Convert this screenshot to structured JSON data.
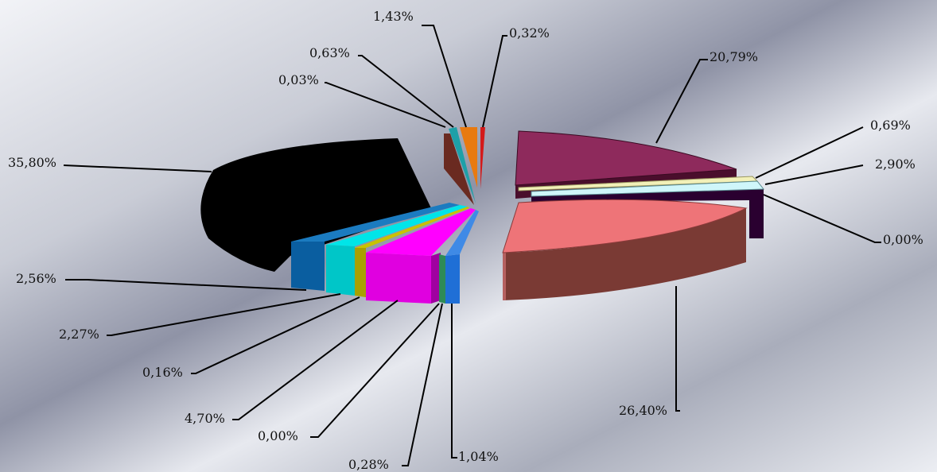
{
  "chart_data": {
    "type": "pie",
    "style": "exploded-3d",
    "slices": [
      {
        "label": "20,79%",
        "value": 20.79,
        "color": "#8E2A5C"
      },
      {
        "label": "0,69%",
        "value": 0.69,
        "color": "#F2F0B8"
      },
      {
        "label": "2,90%",
        "value": 2.9,
        "color": "#CFF6FA"
      },
      {
        "label": "0,00%",
        "value": 0.0,
        "color": "#3A0040"
      },
      {
        "label": "26,40%",
        "value": 26.4,
        "color": "#EE7478"
      },
      {
        "label": "1,04%",
        "value": 1.04,
        "color": "#1F6FD6"
      },
      {
        "label": "0,28%",
        "value": 0.28,
        "color": "#2E8B57"
      },
      {
        "label": "0,00%",
        "value": 0.0,
        "color": "#FF00FF"
      },
      {
        "label": "4,70%",
        "value": 4.7,
        "color": "#FF00FF"
      },
      {
        "label": "0,16%",
        "value": 0.16,
        "color": "#C8C200"
      },
      {
        "label": "2,27%",
        "value": 2.27,
        "color": "#00E5E8"
      },
      {
        "label": "2,56%",
        "value": 2.56,
        "color": "#1B7BC0"
      },
      {
        "label": "35,80%",
        "value": 35.8,
        "color": "#000000"
      },
      {
        "label": "0,03%",
        "value": 0.03,
        "color": "#8B3A2A"
      },
      {
        "label": "0,63%",
        "value": 0.63,
        "color": "#1EA0A8"
      },
      {
        "label": "1,43%",
        "value": 1.43,
        "color": "#E87A10"
      },
      {
        "label": "0,32%",
        "value": 0.32,
        "color": "#D41A1A"
      }
    ]
  }
}
